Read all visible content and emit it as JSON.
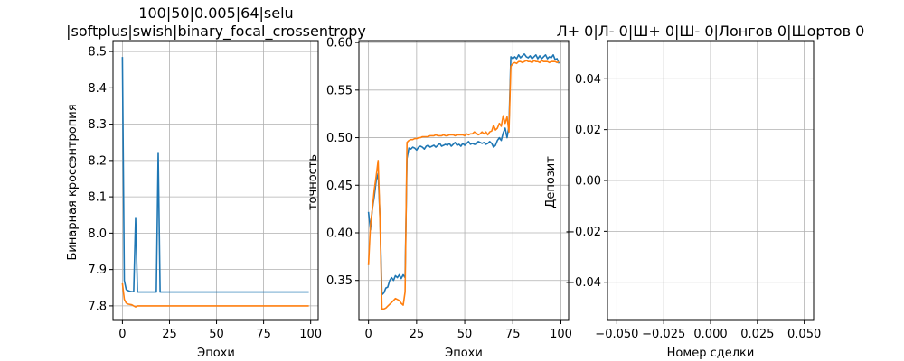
{
  "colors": {
    "series1": "#1f77b4",
    "series2": "#ff7f0e",
    "grid": "#b0b0b0"
  },
  "chart_data": [
    {
      "type": "line",
      "title": "100|50|0.005|64|selu\n|softplus|swish|binary_focal_crossentropy",
      "xlabel": "Эпохи",
      "ylabel": "Бинарная кроссэнтропия",
      "xlim": [
        -5,
        104
      ],
      "ylim": [
        7.76,
        8.53
      ],
      "xticks": [
        0,
        25,
        50,
        75,
        100
      ],
      "xtick_labels": [
        "0",
        "25",
        "50",
        "75",
        "100"
      ],
      "yticks": [
        7.8,
        7.9,
        8.0,
        8.1,
        8.2,
        8.3,
        8.4,
        8.5
      ],
      "ytick_labels": [
        "7.8",
        "7.9",
        "8.0",
        "8.1",
        "8.2",
        "8.3",
        "8.4",
        "8.5"
      ],
      "grid": true,
      "series": [
        {
          "color": "#1f77b4",
          "x": [
            0,
            1,
            2,
            3,
            4,
            5,
            6,
            7,
            8,
            9,
            10,
            11,
            12,
            13,
            14,
            15,
            16,
            17,
            18,
            19,
            20,
            21,
            22,
            23,
            24,
            25,
            30,
            40,
            50,
            60,
            70,
            80,
            90,
            99
          ],
          "y": [
            8.485,
            7.87,
            7.845,
            7.842,
            7.84,
            7.839,
            7.839,
            8.043,
            7.838,
            7.838,
            7.838,
            7.838,
            7.838,
            7.838,
            7.838,
            7.838,
            7.838,
            7.838,
            7.838,
            8.222,
            7.838,
            7.838,
            7.838,
            7.838,
            7.838,
            7.838,
            7.838,
            7.838,
            7.838,
            7.838,
            7.838,
            7.838,
            7.838,
            7.838
          ]
        },
        {
          "color": "#ff7f0e",
          "x": [
            0,
            1,
            2,
            3,
            4,
            5,
            6,
            7,
            8,
            9,
            10,
            15,
            20,
            25,
            30,
            40,
            50,
            60,
            70,
            80,
            90,
            99
          ],
          "y": [
            7.862,
            7.818,
            7.808,
            7.805,
            7.804,
            7.803,
            7.8,
            7.797,
            7.8,
            7.8,
            7.8,
            7.8,
            7.8,
            7.8,
            7.8,
            7.8,
            7.8,
            7.8,
            7.8,
            7.8,
            7.8,
            7.8
          ]
        }
      ]
    },
    {
      "type": "line",
      "title": "",
      "xlabel": "Эпохи",
      "ylabel": "точность",
      "xlim": [
        -5,
        104
      ],
      "ylim": [
        0.308,
        0.602
      ],
      "xticks": [
        0,
        25,
        50,
        75,
        100
      ],
      "xtick_labels": [
        "0",
        "25",
        "50",
        "75",
        "100"
      ],
      "yticks": [
        0.35,
        0.4,
        0.45,
        0.5,
        0.55,
        0.6
      ],
      "ytick_labels": [
        "0.35",
        "0.40",
        "0.45",
        "0.50",
        "0.55",
        "0.60"
      ],
      "grid": true,
      "series": [
        {
          "color": "#1f77b4",
          "x": [
            0,
            1,
            2,
            3,
            4,
            5,
            6,
            7,
            8,
            9,
            10,
            11,
            12,
            13,
            14,
            15,
            16,
            17,
            18,
            19,
            20,
            21,
            22,
            23,
            24,
            25,
            26,
            27,
            28,
            29,
            30,
            31,
            32,
            33,
            34,
            35,
            36,
            37,
            38,
            39,
            40,
            41,
            42,
            43,
            44,
            45,
            46,
            47,
            48,
            49,
            50,
            51,
            52,
            53,
            54,
            55,
            56,
            57,
            58,
            59,
            60,
            61,
            62,
            63,
            64,
            65,
            66,
            67,
            68,
            69,
            70,
            71,
            72,
            73,
            74,
            75,
            76,
            77,
            78,
            79,
            80,
            81,
            82,
            83,
            84,
            85,
            86,
            87,
            88,
            89,
            90,
            91,
            92,
            93,
            94,
            95,
            96,
            97,
            98,
            99
          ],
          "y": [
            0.422,
            0.403,
            0.425,
            0.438,
            0.455,
            0.462,
            0.415,
            0.335,
            0.337,
            0.342,
            0.343,
            0.35,
            0.353,
            0.35,
            0.355,
            0.353,
            0.356,
            0.352,
            0.356,
            0.353,
            0.478,
            0.489,
            0.488,
            0.49,
            0.489,
            0.487,
            0.49,
            0.491,
            0.49,
            0.488,
            0.491,
            0.492,
            0.49,
            0.491,
            0.492,
            0.49,
            0.492,
            0.494,
            0.491,
            0.492,
            0.493,
            0.492,
            0.494,
            0.491,
            0.493,
            0.495,
            0.492,
            0.493,
            0.491,
            0.494,
            0.492,
            0.494,
            0.496,
            0.493,
            0.494,
            0.493,
            0.493,
            0.496,
            0.495,
            0.494,
            0.495,
            0.493,
            0.494,
            0.496,
            0.494,
            0.49,
            0.492,
            0.497,
            0.5,
            0.497,
            0.505,
            0.51,
            0.5,
            0.512,
            0.585,
            0.583,
            0.585,
            0.583,
            0.587,
            0.584,
            0.586,
            0.588,
            0.585,
            0.584,
            0.586,
            0.583,
            0.585,
            0.587,
            0.583,
            0.586,
            0.583,
            0.585,
            0.587,
            0.583,
            0.585,
            0.584,
            0.587,
            0.582,
            0.583,
            0.578
          ]
        },
        {
          "color": "#ff7f0e",
          "x": [
            0,
            1,
            2,
            3,
            4,
            5,
            6,
            7,
            8,
            9,
            10,
            11,
            12,
            13,
            14,
            15,
            16,
            17,
            18,
            19,
            20,
            21,
            22,
            23,
            24,
            25,
            26,
            27,
            28,
            29,
            30,
            31,
            32,
            33,
            34,
            35,
            36,
            37,
            38,
            39,
            40,
            41,
            42,
            43,
            44,
            45,
            46,
            47,
            48,
            49,
            50,
            51,
            52,
            53,
            54,
            55,
            56,
            57,
            58,
            59,
            60,
            61,
            62,
            63,
            64,
            65,
            66,
            67,
            68,
            69,
            70,
            71,
            72,
            73,
            74,
            75,
            76,
            77,
            78,
            79,
            80,
            81,
            82,
            83,
            84,
            85,
            86,
            87,
            88,
            89,
            90,
            91,
            92,
            93,
            94,
            95,
            96,
            97,
            98,
            99
          ],
          "y": [
            0.366,
            0.408,
            0.425,
            0.445,
            0.46,
            0.476,
            0.412,
            0.32,
            0.32,
            0.321,
            0.323,
            0.325,
            0.327,
            0.329,
            0.331,
            0.33,
            0.329,
            0.326,
            0.324,
            0.338,
            0.495,
            0.497,
            0.498,
            0.498,
            0.499,
            0.499,
            0.5,
            0.5,
            0.501,
            0.501,
            0.501,
            0.501,
            0.502,
            0.502,
            0.502,
            0.503,
            0.502,
            0.502,
            0.502,
            0.503,
            0.502,
            0.502,
            0.503,
            0.503,
            0.503,
            0.502,
            0.503,
            0.503,
            0.503,
            0.503,
            0.502,
            0.504,
            0.503,
            0.504,
            0.504,
            0.506,
            0.505,
            0.503,
            0.504,
            0.506,
            0.504,
            0.506,
            0.503,
            0.506,
            0.507,
            0.513,
            0.508,
            0.51,
            0.515,
            0.512,
            0.523,
            0.515,
            0.522,
            0.506,
            0.575,
            0.578,
            0.579,
            0.578,
            0.58,
            0.58,
            0.579,
            0.58,
            0.581,
            0.58,
            0.58,
            0.579,
            0.581,
            0.58,
            0.58,
            0.579,
            0.581,
            0.58,
            0.58,
            0.58,
            0.579,
            0.58,
            0.58,
            0.58,
            0.579,
            0.58
          ]
        }
      ]
    },
    {
      "type": "line",
      "title": "Л+ 0|Л- 0|Ш+ 0|Ш- 0|Лонгов 0|Шортов 0",
      "xlabel": "Номер сделки",
      "ylabel": "Депозит",
      "xlim": [
        -0.055,
        0.055
      ],
      "ylim": [
        -0.055,
        0.055
      ],
      "xticks": [
        -0.05,
        -0.025,
        0.0,
        0.025,
        0.05
      ],
      "xtick_labels": [
        "−0.050",
        "−0.025",
        "0.000",
        "0.025",
        "0.050"
      ],
      "yticks": [
        -0.04,
        -0.02,
        0.0,
        0.02,
        0.04
      ],
      "ytick_labels": [
        "−0.04",
        "−0.02",
        "0.00",
        "0.02",
        "0.04"
      ],
      "grid": true,
      "series": []
    }
  ]
}
